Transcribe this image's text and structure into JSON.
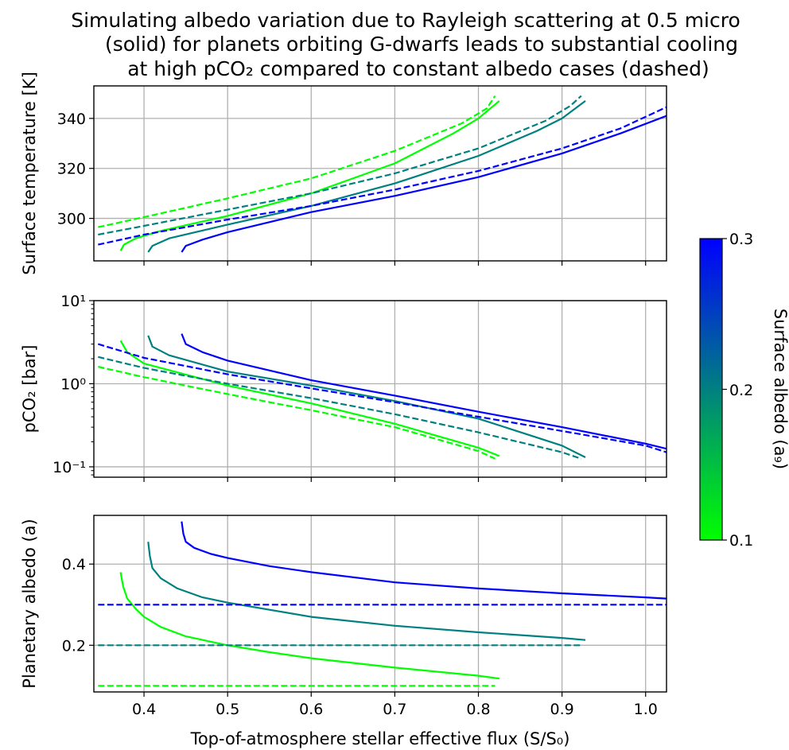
{
  "chart_data": {
    "title_lines": [
      "Simulating albedo variation due to Rayleigh scattering at 0.5 micro",
      "(solid) for planets orbiting G-dwarfs leads to substantial cooling",
      "at high pCO₂ compared to constant albedo cases (dashed)"
    ],
    "xlabel": "Top-of-atmosphere stellar effective flux (S/S₀)",
    "xlim": [
      0.34,
      1.025
    ],
    "x_ticks": [
      "0.4",
      "0.5",
      "0.6",
      "0.7",
      "0.8",
      "0.9",
      "1.0"
    ],
    "colorbar": {
      "label": "Surface albedo (a₉)",
      "range": [
        0.1,
        0.3
      ],
      "ticks": [
        "0.1",
        "0.2",
        "0.3"
      ],
      "colors": [
        "#00ff00",
        "#008080",
        "#0000ff"
      ]
    },
    "charts": [
      {
        "type": "line",
        "ylabel": "Surface temperature [K]",
        "ylim": [
          283,
          353
        ],
        "y_ticks": [
          "300",
          "320",
          "340"
        ],
        "y_tick_values": [
          300,
          320,
          340
        ],
        "grid": true,
        "series": [
          {
            "albedo": 0.1,
            "color": "#00ff00",
            "style": "solid",
            "x": [
              0.372,
              0.376,
              0.39,
              0.42,
              0.5,
              0.6,
              0.7,
              0.77,
              0.8,
              0.825
            ],
            "y": [
              287,
              289.5,
              292,
              295,
              301,
              310,
              322,
              334,
              340,
              347
            ]
          },
          {
            "albedo": 0.1,
            "color": "#00ff00",
            "style": "dashed",
            "x": [
              0.345,
              0.4,
              0.5,
              0.6,
              0.7,
              0.78,
              0.81,
              0.82
            ],
            "y": [
              296.5,
              300.5,
              308,
              316,
              327,
              338,
              344,
              349
            ]
          },
          {
            "albedo": 0.2,
            "color": "#008080",
            "style": "solid",
            "x": [
              0.405,
              0.41,
              0.43,
              0.5,
              0.6,
              0.7,
              0.8,
              0.87,
              0.9,
              0.928
            ],
            "y": [
              286.5,
              289,
              292,
              297.5,
              305,
              314,
              325,
              335,
              340,
              347
            ]
          },
          {
            "albedo": 0.2,
            "color": "#008080",
            "style": "dashed",
            "x": [
              0.345,
              0.4,
              0.5,
              0.6,
              0.7,
              0.8,
              0.88,
              0.91,
              0.923
            ],
            "y": [
              293.5,
              297,
              303.5,
              310,
              318,
              328,
              339,
              345,
              349
            ]
          },
          {
            "albedo": 0.3,
            "color": "#0000ff",
            "style": "solid",
            "x": [
              0.445,
              0.45,
              0.47,
              0.5,
              0.6,
              0.7,
              0.8,
              0.9,
              0.97,
              1.025
            ],
            "y": [
              286.5,
              289,
              291.5,
              294.5,
              302.5,
              309,
              316.5,
              326,
              334,
              341
            ]
          },
          {
            "albedo": 0.3,
            "color": "#0000ff",
            "style": "dashed",
            "x": [
              0.345,
              0.4,
              0.5,
              0.6,
              0.7,
              0.8,
              0.9,
              0.97,
              1.025
            ],
            "y": [
              289.5,
              293.5,
              299.5,
              305,
              311.5,
              319,
              328,
              336,
              344.5
            ]
          }
        ]
      },
      {
        "type": "line",
        "ylabel": "pCO₂ [bar]",
        "yscale": "log",
        "ylim": [
          0.075,
          10
        ],
        "y_ticks": [
          "10⁻¹",
          "10⁰",
          "10¹"
        ],
        "y_tick_values": [
          0.1,
          1,
          10
        ],
        "grid": true,
        "series": [
          {
            "albedo": 0.1,
            "color": "#00ff00",
            "style": "solid",
            "x": [
              0.372,
              0.38,
              0.4,
              0.5,
              0.6,
              0.7,
              0.8,
              0.825
            ],
            "y": [
              3.3,
              2.4,
              1.75,
              0.95,
              0.58,
              0.33,
              0.17,
              0.135
            ]
          },
          {
            "albedo": 0.1,
            "color": "#00ff00",
            "style": "dashed",
            "x": [
              0.345,
              0.4,
              0.5,
              0.6,
              0.7,
              0.8,
              0.82
            ],
            "y": [
              1.6,
              1.2,
              0.75,
              0.48,
              0.3,
              0.155,
              0.125
            ]
          },
          {
            "albedo": 0.2,
            "color": "#008080",
            "style": "solid",
            "x": [
              0.405,
              0.41,
              0.43,
              0.5,
              0.6,
              0.7,
              0.8,
              0.9,
              0.928
            ],
            "y": [
              3.8,
              2.8,
              2.2,
              1.4,
              0.95,
              0.62,
              0.38,
              0.18,
              0.13
            ]
          },
          {
            "albedo": 0.2,
            "color": "#008080",
            "style": "dashed",
            "x": [
              0.345,
              0.4,
              0.5,
              0.6,
              0.7,
              0.8,
              0.9,
              0.923
            ],
            "y": [
              2.1,
              1.55,
              1.0,
              0.67,
              0.43,
              0.26,
              0.15,
              0.125
            ]
          },
          {
            "albedo": 0.3,
            "color": "#0000ff",
            "style": "solid",
            "x": [
              0.445,
              0.45,
              0.47,
              0.5,
              0.6,
              0.7,
              0.8,
              0.9,
              1.0,
              1.025
            ],
            "y": [
              4.0,
              3.0,
              2.4,
              1.9,
              1.1,
              0.72,
              0.46,
              0.3,
              0.19,
              0.165
            ]
          },
          {
            "albedo": 0.3,
            "color": "#0000ff",
            "style": "dashed",
            "x": [
              0.345,
              0.4,
              0.5,
              0.6,
              0.7,
              0.8,
              0.9,
              1.0,
              1.025
            ],
            "y": [
              3.0,
              2.05,
              1.3,
              0.88,
              0.6,
              0.4,
              0.27,
              0.18,
              0.15
            ]
          }
        ]
      },
      {
        "type": "line",
        "ylabel": "Planetary albedo (a)",
        "ylim": [
          0.085,
          0.52
        ],
        "y_ticks": [
          "0.2",
          "0.4"
        ],
        "y_tick_values": [
          0.2,
          0.4
        ],
        "grid": true,
        "series": [
          {
            "albedo": 0.1,
            "color": "#00ff00",
            "style": "solid",
            "x": [
              0.372,
              0.375,
              0.38,
              0.39,
              0.4,
              0.42,
              0.45,
              0.5,
              0.55,
              0.6,
              0.7,
              0.8,
              0.825
            ],
            "y": [
              0.38,
              0.345,
              0.315,
              0.29,
              0.27,
              0.245,
              0.222,
              0.2,
              0.183,
              0.168,
              0.145,
              0.125,
              0.118
            ]
          },
          {
            "albedo": 0.1,
            "color": "#00ff00",
            "style": "dashed",
            "x": [
              0.345,
              0.82
            ],
            "y": [
              0.1,
              0.1
            ]
          },
          {
            "albedo": 0.2,
            "color": "#008080",
            "style": "solid",
            "x": [
              0.405,
              0.407,
              0.41,
              0.42,
              0.44,
              0.47,
              0.5,
              0.6,
              0.7,
              0.8,
              0.9,
              0.928
            ],
            "y": [
              0.455,
              0.42,
              0.39,
              0.365,
              0.34,
              0.318,
              0.305,
              0.27,
              0.248,
              0.232,
              0.218,
              0.213
            ]
          },
          {
            "albedo": 0.2,
            "color": "#008080",
            "style": "dashed",
            "x": [
              0.345,
              0.923
            ],
            "y": [
              0.2,
              0.2
            ]
          },
          {
            "albedo": 0.3,
            "color": "#0000ff",
            "style": "solid",
            "x": [
              0.445,
              0.447,
              0.45,
              0.46,
              0.48,
              0.5,
              0.55,
              0.6,
              0.7,
              0.8,
              0.9,
              1.0,
              1.025
            ],
            "y": [
              0.505,
              0.475,
              0.455,
              0.44,
              0.425,
              0.415,
              0.395,
              0.38,
              0.355,
              0.34,
              0.328,
              0.318,
              0.315
            ]
          },
          {
            "albedo": 0.3,
            "color": "#0000ff",
            "style": "dashed",
            "x": [
              0.345,
              1.025
            ],
            "y": [
              0.3,
              0.3
            ]
          }
        ]
      }
    ]
  }
}
